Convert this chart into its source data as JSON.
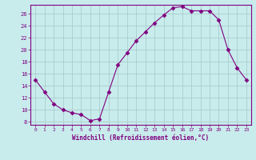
{
  "x": [
    0,
    1,
    2,
    3,
    4,
    5,
    6,
    7,
    8,
    9,
    10,
    11,
    12,
    13,
    14,
    15,
    16,
    17,
    18,
    19,
    20,
    21,
    22,
    23
  ],
  "y": [
    15,
    13,
    11,
    10,
    9.5,
    9.2,
    8.2,
    8.5,
    13,
    17.5,
    19.5,
    21.5,
    23,
    24.5,
    25.8,
    27,
    27.2,
    26.5,
    26.5,
    26.5,
    25,
    20,
    17,
    15
  ],
  "line_color": "#800080",
  "marker": "D",
  "marker_size": 2.5,
  "bg_color": "#c8ecec",
  "grid_color": "#aacccc",
  "xlabel": "Windchill (Refroidissement éolien,°C)",
  "xlabel_color": "#800080",
  "tick_color": "#800080",
  "ylim": [
    7.5,
    27.5
  ],
  "xlim": [
    -0.5,
    23.5
  ],
  "yticks": [
    8,
    10,
    12,
    14,
    16,
    18,
    20,
    22,
    24,
    26
  ],
  "xticks": [
    0,
    1,
    2,
    3,
    4,
    5,
    6,
    7,
    8,
    9,
    10,
    11,
    12,
    13,
    14,
    15,
    16,
    17,
    18,
    19,
    20,
    21,
    22,
    23
  ]
}
